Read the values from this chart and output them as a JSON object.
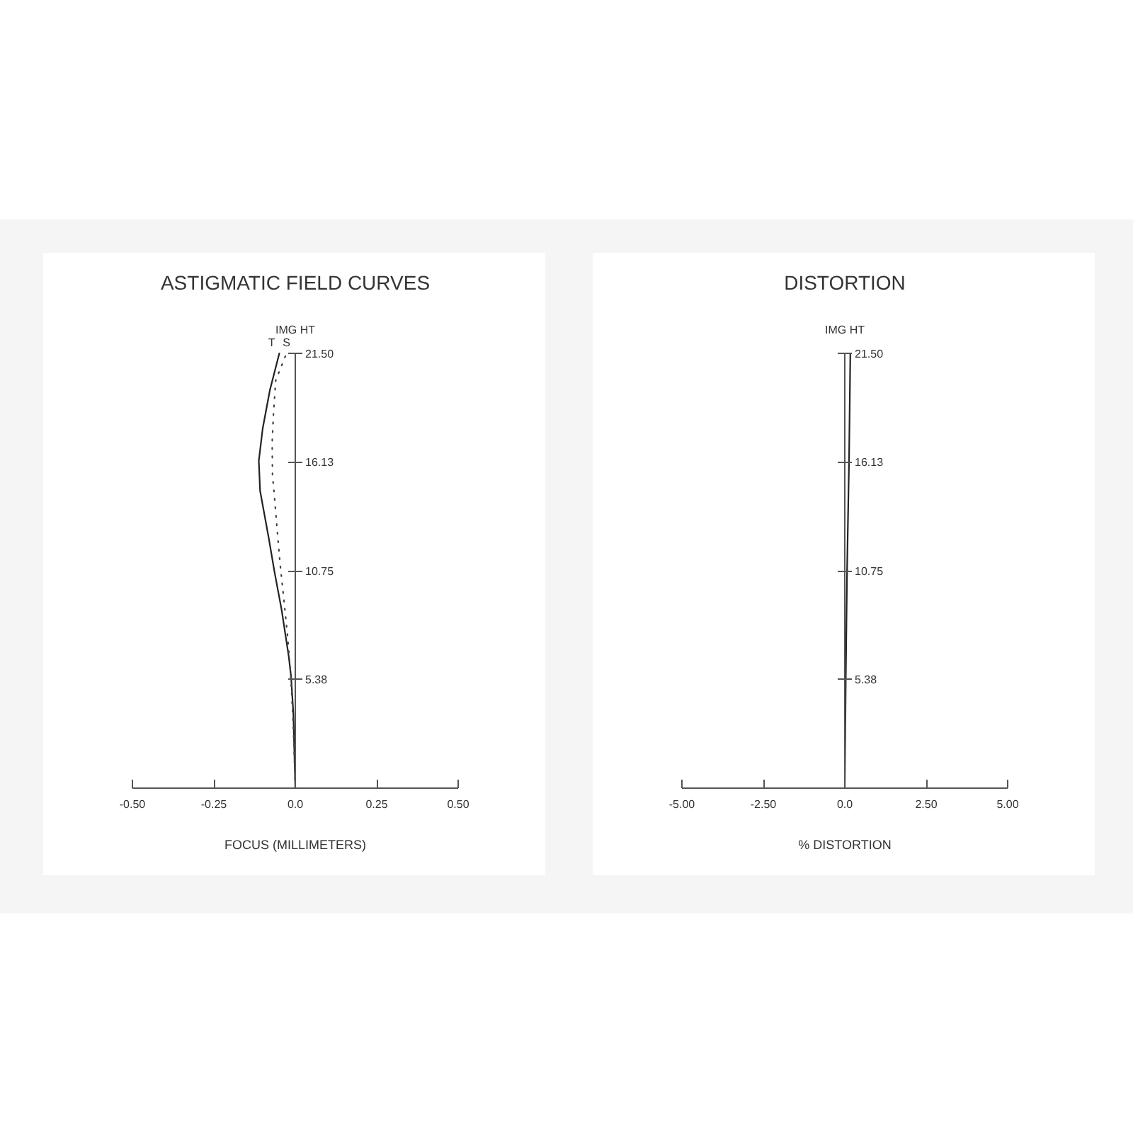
{
  "chart_data": [
    {
      "type": "line",
      "title": "ASTIGMATIC FIELD CURVES",
      "xlabel": "FOCUS (MILLIMETERS)",
      "ylabel": "IMG HT",
      "xlim": [
        -0.5,
        0.5
      ],
      "xticks": [
        {
          "value": -0.5,
          "label": "-0.50"
        },
        -0.25,
        {
          "value": 0,
          "label": "0.0"
        },
        0.25,
        {
          "value": 0.5,
          "label": "0.50"
        }
      ],
      "ylim": [
        0,
        21.5
      ],
      "yticks": [
        5.38,
        10.75,
        16.13,
        {
          "value": 21.5,
          "label": "21.50"
        }
      ],
      "grid": false,
      "series": [
        {
          "name": "T",
          "color": "#222222",
          "line_style": "solid",
          "x": [
            0,
            -0.006,
            -0.013,
            -0.02,
            -0.042,
            -0.064,
            -0.081,
            -0.108,
            -0.112,
            -0.1,
            -0.078,
            -0.049
          ],
          "values": [
            0,
            3.71,
            5.53,
            6.51,
            8.82,
            10.71,
            12.32,
            14.7,
            16.18,
            17.79,
            19.68,
            21.5
          ]
        },
        {
          "name": "S",
          "color": "#444444",
          "line_style": "dotted",
          "x": [
            0,
            -0.006,
            -0.013,
            -0.023,
            -0.035,
            -0.047,
            -0.057,
            -0.064,
            -0.07,
            -0.071,
            -0.067,
            -0.06,
            -0.027
          ],
          "values": [
            0,
            3.01,
            5.32,
            7.42,
            9.31,
            11.15,
            13.03,
            14.43,
            15.48,
            17.09,
            18.49,
            20.17,
            21.5
          ]
        }
      ]
    },
    {
      "type": "line",
      "title": "DISTORTION",
      "xlabel": "% DISTORTION",
      "ylabel": "IMG HT",
      "xlim": [
        -5,
        5
      ],
      "xticks": [
        {
          "value": -5,
          "label": "-5.00"
        },
        {
          "value": -2.5,
          "label": "-2.50"
        },
        {
          "value": 0,
          "label": "0.0"
        },
        {
          "value": 2.5,
          "label": "2.50"
        },
        {
          "value": 5,
          "label": "5.00"
        }
      ],
      "ylim": [
        0,
        21.5
      ],
      "yticks": [
        5.38,
        10.75,
        16.13,
        {
          "value": 21.5,
          "label": "21.50"
        }
      ],
      "grid": false,
      "series": [
        {
          "color": "#222222",
          "line_style": "solid",
          "x": [
            0,
            0.03,
            0.07,
            0.13,
            0.17
          ],
          "values": [
            0,
            5.38,
            10.75,
            16.13,
            21.5
          ]
        }
      ]
    }
  ]
}
